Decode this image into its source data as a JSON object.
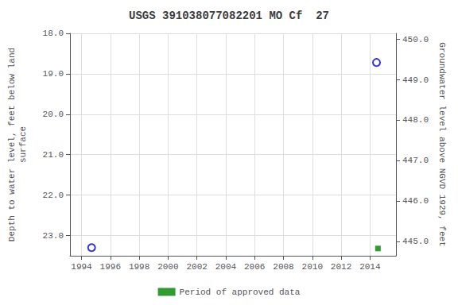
{
  "chart_data": {
    "type": "scatter",
    "title": "USGS 391038077082201 MO Cf  27",
    "xlim": [
      1993.2,
      2015.8
    ],
    "xticks": [
      1994,
      1996,
      1998,
      2000,
      2002,
      2004,
      2006,
      2008,
      2010,
      2012,
      2014
    ],
    "ylim": [
      23.5,
      18.0
    ],
    "yticks": [
      {
        "value": 18.0,
        "label": "18.0"
      },
      {
        "value": 19.0,
        "label": "19.0"
      },
      {
        "value": 20.0,
        "label": "20.0"
      },
      {
        "value": 21.0,
        "label": "21.0"
      },
      {
        "value": 22.0,
        "label": "22.0"
      },
      {
        "value": 23.0,
        "label": "23.0"
      }
    ],
    "y2lim": [
      444.65,
      450.15
    ],
    "y2ticks": [
      {
        "value": 445.0,
        "label": "445.0"
      },
      {
        "value": 446.0,
        "label": "446.0"
      },
      {
        "value": 447.0,
        "label": "447.0"
      },
      {
        "value": 448.0,
        "label": "448.0"
      },
      {
        "value": 449.0,
        "label": "449.0"
      },
      {
        "value": 450.0,
        "label": "450.0"
      }
    ],
    "ylabel": "Depth to water level, feet below land\nsurface",
    "y2label": "Groundwater level above NGVD 1929, feet",
    "grid": true,
    "legend": "bottom",
    "series": [
      {
        "color": "#0000cc",
        "marker": "circle_open",
        "x": [
          1994.7,
          2014.45
        ],
        "values": [
          23.3,
          18.72
        ]
      },
      {
        "name": "Period of approved data",
        "color": "#008000",
        "marker": "square",
        "x": [
          2014.55
        ],
        "values": [
          23.32
        ]
      }
    ]
  }
}
